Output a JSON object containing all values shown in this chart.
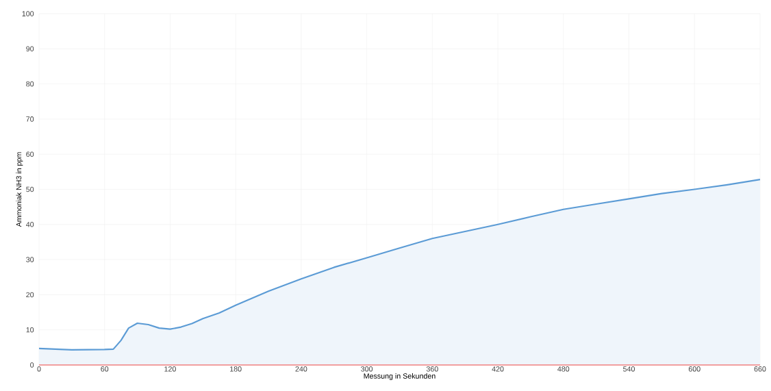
{
  "chart_data": {
    "type": "area",
    "xlabel": "Messung in Sekunden",
    "ylabel": "Ammoniak NH3 in ppm",
    "xlim": [
      0,
      660
    ],
    "ylim": [
      0,
      100
    ],
    "xticks": [
      0,
      60,
      120,
      180,
      240,
      300,
      360,
      420,
      480,
      540,
      600,
      660
    ],
    "yticks": [
      0,
      10,
      20,
      30,
      40,
      50,
      60,
      70,
      80,
      90,
      100
    ],
    "grid": true,
    "series": [
      {
        "color": "#5b9bd5",
        "x": [
          0,
          30,
          60,
          68,
          75,
          82,
          90,
          100,
          110,
          120,
          130,
          140,
          150,
          165,
          180,
          210,
          240,
          270,
          300,
          330,
          360,
          390,
          420,
          450,
          480,
          510,
          540,
          570,
          600,
          630,
          660
        ],
        "values": [
          4.7,
          4.3,
          4.4,
          4.5,
          7,
          10.5,
          11.9,
          11.5,
          10.5,
          10.2,
          10.8,
          11.8,
          13.2,
          14.8,
          17,
          21,
          24.5,
          27.8,
          30.5,
          33.3,
          36,
          38,
          40,
          42.2,
          44.3,
          45.8,
          47.3,
          48.8,
          50,
          51.3,
          52.8
        ]
      },
      {
        "type": "line",
        "color": "#f08080",
        "x": [
          0,
          660
        ],
        "values": [
          0,
          0
        ]
      }
    ]
  }
}
